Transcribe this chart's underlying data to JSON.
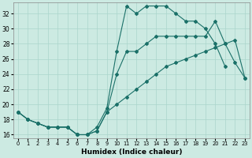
{
  "xlabel": "Humidex (Indice chaleur)",
  "bg_color": "#cceae2",
  "grid_color": "#aad5cc",
  "line_color": "#1a7068",
  "xlim": [
    -0.5,
    23.5
  ],
  "ylim": [
    15.5,
    33.5
  ],
  "xticks": [
    0,
    1,
    2,
    3,
    4,
    5,
    6,
    7,
    8,
    9,
    10,
    11,
    12,
    13,
    14,
    15,
    16,
    17,
    18,
    19,
    20,
    21,
    22,
    23
  ],
  "yticks": [
    16,
    18,
    20,
    22,
    24,
    26,
    28,
    30,
    32
  ],
  "line1": {
    "x": [
      0,
      1,
      2,
      3,
      4,
      5,
      6,
      7,
      8,
      9,
      10,
      11,
      12,
      13,
      14,
      15,
      16,
      17,
      18,
      19,
      20,
      21
    ],
    "y": [
      19,
      18,
      17.5,
      17,
      17,
      17,
      16,
      16,
      17,
      19.5,
      27,
      33,
      32,
      33,
      33,
      33,
      32,
      31,
      31,
      30,
      28,
      25
    ]
  },
  "line2": {
    "x": [
      0,
      1,
      2,
      3,
      4,
      5,
      6,
      7,
      8,
      9,
      10,
      11,
      12,
      13,
      14,
      15,
      16,
      17,
      18,
      19,
      20,
      21,
      22,
      23
    ],
    "y": [
      19,
      18,
      17.5,
      17,
      17,
      17,
      16,
      16,
      16.5,
      19,
      24,
      27,
      27,
      28,
      29,
      29,
      29,
      29,
      29,
      29,
      31,
      28,
      25.5,
      23.5
    ]
  },
  "line3": {
    "x": [
      0,
      1,
      2,
      3,
      4,
      5,
      6,
      7,
      8,
      9,
      10,
      11,
      12,
      13,
      14,
      15,
      16,
      17,
      18,
      19,
      20,
      21,
      22,
      23
    ],
    "y": [
      19,
      18,
      17.5,
      17,
      17,
      17,
      16,
      16,
      16.5,
      19,
      20,
      21,
      22,
      23,
      24,
      25,
      25.5,
      26,
      26.5,
      27,
      27.5,
      28,
      28.5,
      23.5
    ]
  }
}
